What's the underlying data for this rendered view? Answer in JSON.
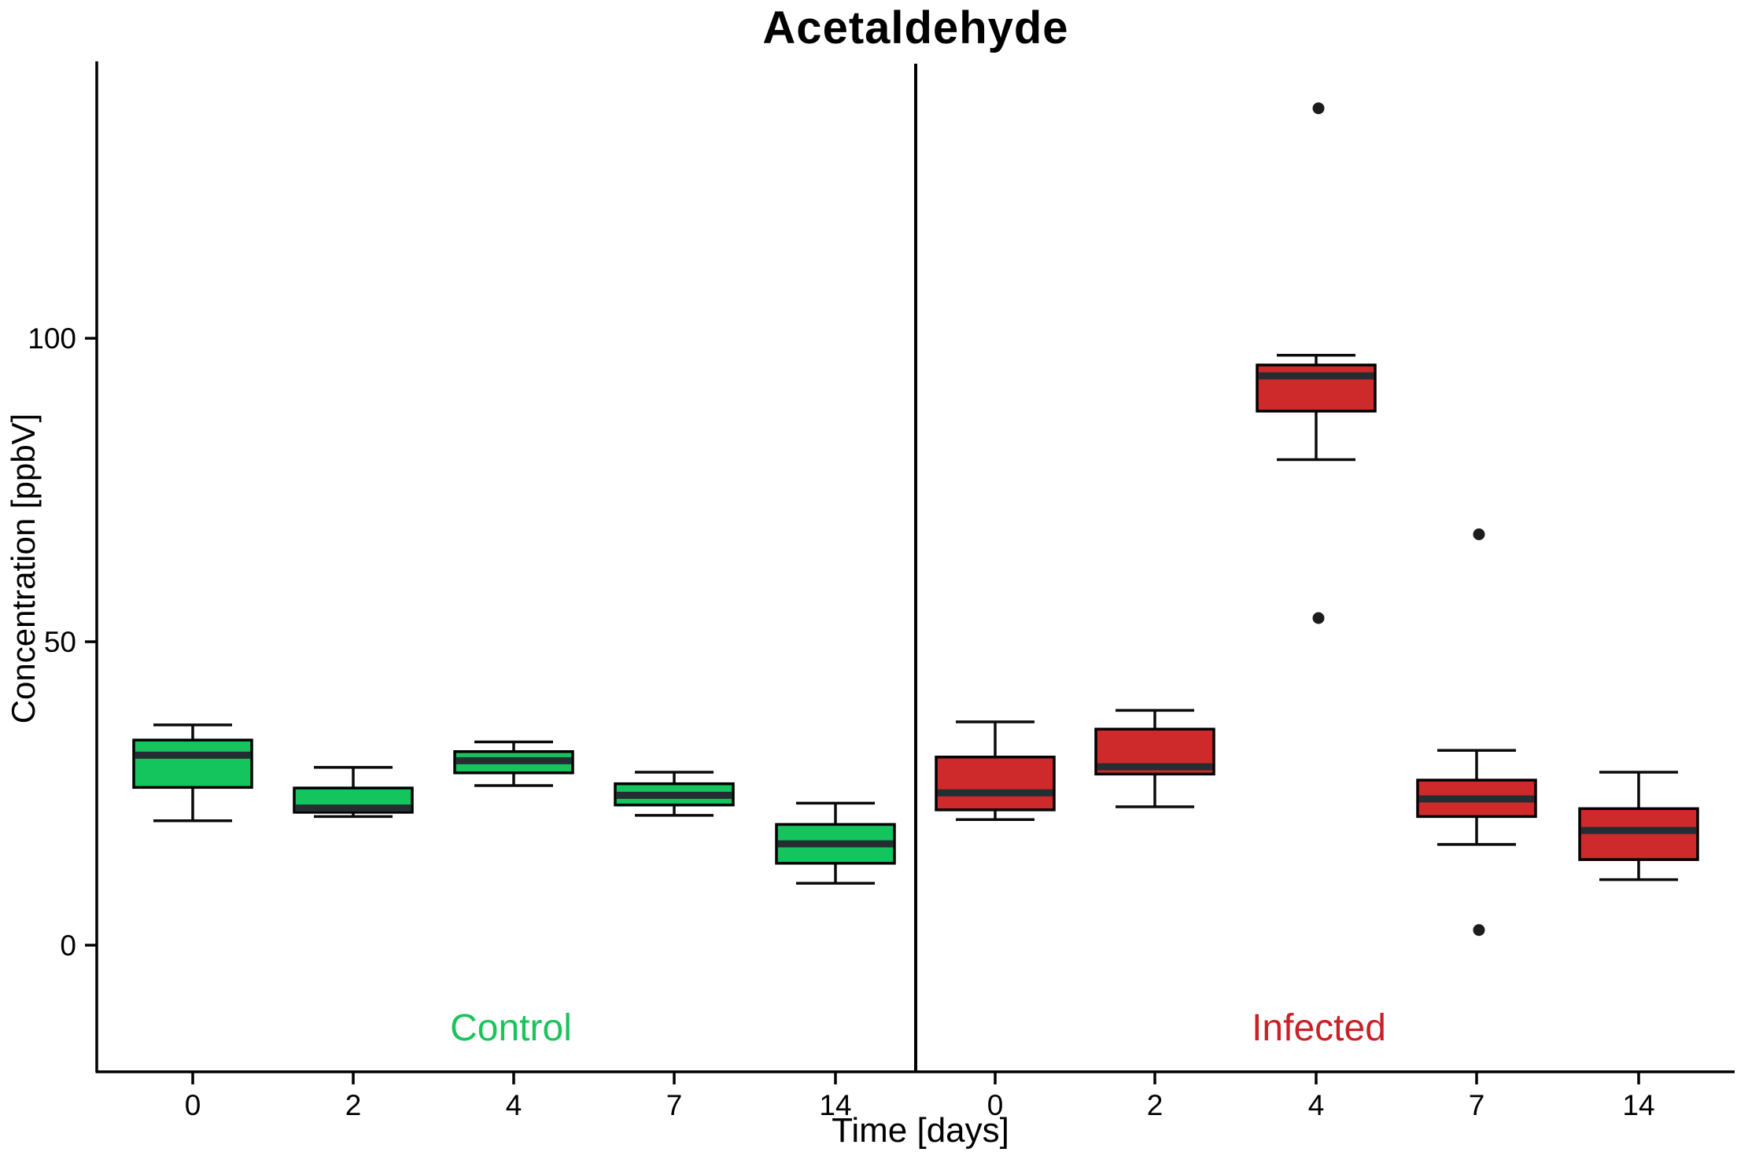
{
  "chart_data": {
    "type": "boxplot",
    "title": "Acetaldehyde",
    "xlabel": "Time [days]",
    "ylabel": "Concentration [ppbV]",
    "y_ticks": [
      0,
      50,
      100
    ],
    "ylim": [
      -21,
      146
    ],
    "grid": "off",
    "legend": "panel-labels-inside-plot",
    "categories": [
      "0",
      "2",
      "4",
      "7",
      "14"
    ],
    "groups": [
      {
        "name": "Control",
        "color": "#14c45c",
        "label_color": "#1cc35a",
        "boxes": [
          {
            "category": "0",
            "whisker_low": 20.5,
            "q1": 26.0,
            "median": 31.3,
            "q3": 33.8,
            "whisker_high": 36.3,
            "outliers": []
          },
          {
            "category": "2",
            "whisker_low": 21.2,
            "q1": 21.9,
            "median": 22.6,
            "q3": 25.9,
            "whisker_high": 29.3,
            "outliers": []
          },
          {
            "category": "4",
            "whisker_low": 26.3,
            "q1": 28.4,
            "median": 30.4,
            "q3": 31.9,
            "whisker_high": 33.5,
            "outliers": []
          },
          {
            "category": "7",
            "whisker_low": 21.4,
            "q1": 23.1,
            "median": 24.7,
            "q3": 26.6,
            "whisker_high": 28.5,
            "outliers": []
          },
          {
            "category": "14",
            "whisker_low": 10.2,
            "q1": 13.5,
            "median": 16.7,
            "q3": 19.9,
            "whisker_high": 23.4,
            "outliers": []
          }
        ]
      },
      {
        "name": "Infected",
        "color": "#cf2a2b",
        "label_color": "#c92127",
        "boxes": [
          {
            "category": "0",
            "whisker_low": 20.7,
            "q1": 22.3,
            "median": 25.1,
            "q3": 31.0,
            "whisker_high": 36.8,
            "outliers": []
          },
          {
            "category": "2",
            "whisker_low": 22.8,
            "q1": 28.2,
            "median": 29.4,
            "q3": 35.6,
            "whisker_high": 38.7,
            "outliers": []
          },
          {
            "category": "4",
            "whisker_low": 80.0,
            "q1": 88.0,
            "median": 93.8,
            "q3": 95.6,
            "whisker_high": 97.2,
            "outliers": [
              137.9,
              53.9
            ]
          },
          {
            "category": "7",
            "whisker_low": 16.6,
            "q1": 21.2,
            "median": 24.1,
            "q3": 27.2,
            "whisker_high": 32.1,
            "outliers": [
              67.7,
              2.5
            ]
          },
          {
            "category": "14",
            "whisker_low": 10.8,
            "q1": 14.1,
            "median": 18.9,
            "q3": 22.5,
            "whisker_high": 28.5,
            "outliers": []
          }
        ]
      }
    ],
    "style": {
      "median_color": "#232d32",
      "outlier_color": "#1c1c1c",
      "axis_color": "#000000"
    }
  }
}
